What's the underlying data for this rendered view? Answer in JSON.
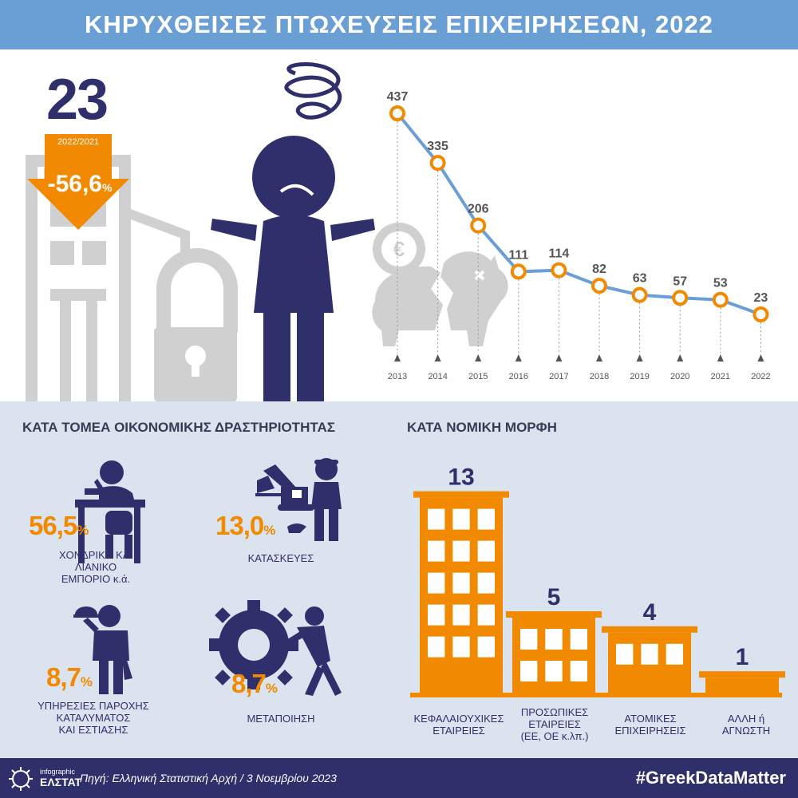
{
  "header": {
    "title": "ΚΗΡΥΧΘΕΙΣΕΣ ΠΤΩΧΕΥΣΕΙΣ ΕΠΙΧΕΙΡΗΣΕΩΝ, 2022"
  },
  "summary": {
    "value": "23",
    "change_period": "2022/2021",
    "change_value": "-56,6",
    "change_unit": "%"
  },
  "colors": {
    "navy": "#2f2f6b",
    "orange": "#f18a00",
    "line_blue": "#6a9fd5",
    "grey": "#d0d0d0",
    "light_bg": "#dbe3ef"
  },
  "chart_data": [
    {
      "type": "line",
      "x": [
        "2013",
        "2014",
        "2015",
        "2016",
        "2017",
        "2018",
        "2019",
        "2020",
        "2021",
        "2022"
      ],
      "values": [
        437,
        335,
        206,
        111,
        114,
        82,
        63,
        57,
        53,
        23
      ],
      "data_labels": [
        "437",
        "335",
        "206",
        "111",
        "114",
        "82",
        "63",
        "57",
        "53",
        "23"
      ],
      "title": "",
      "xlabel": "",
      "ylabel": "",
      "grid": false
    },
    {
      "type": "bar",
      "categories": [
        "ΚΕΦΑΛΑΙΟΥΧΙΚΕΣ ΕΤΑΙΡΕΙΕΣ",
        "ΠΡΟΣΩΠΙΚΕΣ ΕΤΑΙΡΕΙΕΣ (ΕΕ, ΟΕ κ.λπ.)",
        "ΑΤΟΜΙΚΕΣ ΕΠΙΧΕΙΡΗΣΕΙΣ",
        "ΑΛΛΗ ή ΑΓΝΩΣΤΗ"
      ],
      "values": [
        13,
        5,
        4,
        1
      ],
      "title": "ΚΑΤΑ ΝΟΜΙΚΗ ΜΟΡΦΗ"
    }
  ],
  "sectors": {
    "title": "ΚΑΤΑ ΤΟΜΕΑ ΟΙΚΟΝΟΜΙΚΗΣ ΔΡΑΣΤΗΡΙΟΤΗΤΑΣ",
    "items": [
      {
        "value": "56,5",
        "unit": "%",
        "label_lines": [
          "ΧΟΝΔΡΙΚΟ ΚΑΙ",
          "ΛΙΑΝΙΚΟ",
          "ΕΜΠΟΡΙΟ κ.ά."
        ],
        "icon": "office-worker-phone-icon"
      },
      {
        "value": "13,0",
        "unit": "%",
        "label_lines": [
          "ΚΑΤΑΣΚΕΥΕΣ"
        ],
        "icon": "construction-worker-excavator-icon"
      },
      {
        "value": "8,7",
        "unit": "%",
        "label_lines": [
          "ΥΠΗΡΕΣΙΕΣ ΠΑΡΟΧΗΣ",
          "ΚΑΤΑΛΥΜΑΤΟΣ",
          "ΚΑΙ ΕΣΤΙΑΣΗΣ"
        ],
        "icon": "waiter-icon"
      },
      {
        "value": "8,7",
        "unit": "%",
        "label_lines": [
          "ΜΕΤΑΠΟΙΗΣΗ"
        ],
        "icon": "worker-pushing-gear-icon"
      }
    ]
  },
  "legal": {
    "title": "ΚΑΤΑ ΝΟΜΙΚΗ ΜΟΡΦΗ",
    "items": [
      {
        "count": "13",
        "label_lines": [
          "ΚΕΦΑΛΑΙΟΥΧΙΚΕΣ",
          "ΕΤΑΙΡΕΙΕΣ"
        ]
      },
      {
        "count": "5",
        "label_lines": [
          "ΠΡΟΣΩΠΙΚΕΣ",
          "ΕΤΑΙΡΕΙΕΣ",
          "(ΕΕ, ΟΕ κ.λπ.)"
        ]
      },
      {
        "count": "4",
        "label_lines": [
          "ΑΤΟΜΙΚΕΣ",
          "ΕΠΙΧΕΙΡΗΣΕΙΣ"
        ]
      },
      {
        "count": "1",
        "label_lines": [
          "ΑΛΛΗ ή",
          "ΑΓΝΩΣΤΗ"
        ]
      }
    ]
  },
  "footer": {
    "logo_small": "infographic",
    "logo_big": "ΕΛΣΤΑΤ",
    "source": "Πηγή: Ελληνική Στατιστική Αρχή  / 3 Νοεμβρίου 2023",
    "hashtag": "#GreekDataMatter"
  }
}
